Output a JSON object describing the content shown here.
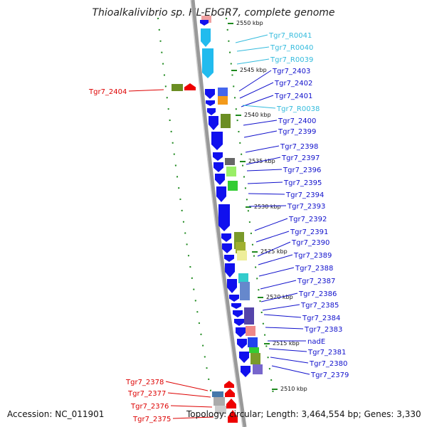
{
  "title": "Thioalkalivibrio sp. HL-EbGR7, complete genome",
  "footer": {
    "accession": "Accession: NC_011901",
    "topology": "Topology: circular; Length: 3,464,554 bp; Genes: 3,330"
  },
  "colors": {
    "forward_gene": "#1010ee",
    "rna_gene": "#22bbee",
    "reverse_gene": "#ee0000",
    "label_blue": "#1010cc",
    "label_cyan": "#33bbdd",
    "label_red": "#dd0000",
    "backbone": "#999999",
    "tick": "#1f8a1f"
  },
  "ruler": [
    {
      "label": "2550 kbp"
    },
    {
      "label": "2545 kbp"
    },
    {
      "label": "2540 kbp"
    },
    {
      "label": "2535 kbp"
    },
    {
      "label": "2530 kbp"
    },
    {
      "label": "2525 kbp"
    },
    {
      "label": "2520 kbp"
    },
    {
      "label": "2515 kbp"
    },
    {
      "label": "2510 kbp"
    }
  ],
  "genes_right": [
    {
      "name": "Tgr7_R0041",
      "kind": "rna"
    },
    {
      "name": "Tgr7_R0040",
      "kind": "rna"
    },
    {
      "name": "Tgr7_R0039",
      "kind": "rna"
    },
    {
      "name": "Tgr7_2403",
      "kind": "protein"
    },
    {
      "name": "Tgr7_2402",
      "kind": "protein"
    },
    {
      "name": "Tgr7_2401",
      "kind": "protein"
    },
    {
      "name": "Tgr7_R0038",
      "kind": "rna"
    },
    {
      "name": "Tgr7_2400",
      "kind": "protein"
    },
    {
      "name": "Tgr7_2399",
      "kind": "protein"
    },
    {
      "name": "Tgr7_2398",
      "kind": "protein"
    },
    {
      "name": "Tgr7_2397",
      "kind": "protein"
    },
    {
      "name": "Tgr7_2396",
      "kind": "protein"
    },
    {
      "name": "Tgr7_2395",
      "kind": "protein"
    },
    {
      "name": "Tgr7_2394",
      "kind": "protein"
    },
    {
      "name": "Tgr7_2393",
      "kind": "protein"
    },
    {
      "name": "Tgr7_2392",
      "kind": "protein"
    },
    {
      "name": "Tgr7_2391",
      "kind": "protein"
    },
    {
      "name": "Tgr7_2390",
      "kind": "protein"
    },
    {
      "name": "Tgr7_2389",
      "kind": "protein"
    },
    {
      "name": "Tgr7_2388",
      "kind": "protein"
    },
    {
      "name": "Tgr7_2387",
      "kind": "protein"
    },
    {
      "name": "Tgr7_2386",
      "kind": "protein"
    },
    {
      "name": "Tgr7_2385",
      "kind": "protein"
    },
    {
      "name": "Tgr7_2384",
      "kind": "protein"
    },
    {
      "name": "Tgr7_2383",
      "kind": "protein"
    },
    {
      "name": "nadE",
      "kind": "protein"
    },
    {
      "name": "Tgr7_2381",
      "kind": "protein"
    },
    {
      "name": "Tgr7_2380",
      "kind": "protein"
    },
    {
      "name": "Tgr7_2379",
      "kind": "protein"
    }
  ],
  "genes_left": [
    {
      "name": "Tgr7_2404"
    },
    {
      "name": "Tgr7_2378"
    },
    {
      "name": "Tgr7_2377"
    },
    {
      "name": "Tgr7_2376"
    },
    {
      "name": "Tgr7_2375"
    }
  ]
}
